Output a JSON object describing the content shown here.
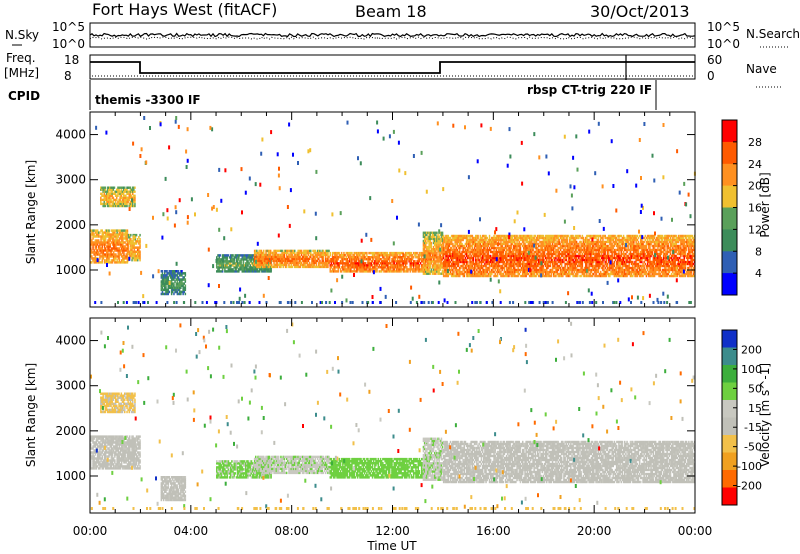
{
  "header": {
    "title": "Fort Hays West (fitACF)",
    "beam": "Beam 18",
    "date": "30/Oct/2013"
  },
  "top_panels": {
    "nsky_label": "N.Sky",
    "nsky_tick_top": "10^5",
    "nsky_tick_bottom": "10^0",
    "nsearch_label": "N.Search",
    "nsearch_tick_top": "10^5",
    "nsearch_tick_bottom": "10^0",
    "freq_label": "Freq.",
    "freq_unit": "[MHz]",
    "freq_ticks": [
      "18",
      "8"
    ],
    "nave_label": "Nave",
    "nave_ticks": [
      "60",
      "0"
    ],
    "cpid_label": "CPID",
    "cpid_left": "themis -3300 IF",
    "cpid_right": "rbsp CT-trig 220 IF"
  },
  "colors": {
    "power_scale": [
      "#0000ff",
      "#2f5fb4",
      "#3c8c5a",
      "#5aa05a",
      "#f0c030",
      "#ff9020",
      "#ff5a00",
      "#ff0000"
    ],
    "velocity_scale": [
      "#ff0000",
      "#ff6a00",
      "#f0a020",
      "#f2c04a",
      "#c0c0b8",
      "#c8c8c0",
      "#6ed040",
      "#3cae3c",
      "#3c8c8c",
      "#1030c8"
    ],
    "ground_scatter": "#c0c0b8"
  },
  "chart_data": [
    {
      "type": "heatmap",
      "name": "power",
      "ylabel": "Slant Range [km]",
      "xlabel": "",
      "x_ticks": [
        "00:00",
        "04:00",
        "08:00",
        "12:00",
        "16:00",
        "20:00",
        "00:00"
      ],
      "x_range_hours": [
        0,
        24
      ],
      "y_ticks": [
        "1000",
        "2000",
        "3000",
        "4000"
      ],
      "ylim": [
        180,
        4500
      ],
      "colorbar": {
        "label": "Power [dB]",
        "ticks": [
          "4",
          "8",
          "12",
          "16",
          "20",
          "24",
          "28"
        ],
        "range": [
          0,
          32
        ]
      },
      "scatter_bands": [
        {
          "t0": 0.0,
          "t1": 1.5,
          "lo": 1150,
          "hi": 1900,
          "value": 22
        },
        {
          "t0": 1.5,
          "t1": 2.0,
          "lo": 1200,
          "hi": 1800,
          "value": 20
        },
        {
          "t0": 0.4,
          "t1": 1.8,
          "lo": 2400,
          "hi": 2850,
          "value": 18
        },
        {
          "t0": 2.8,
          "t1": 3.8,
          "lo": 450,
          "hi": 1000,
          "value": 10
        },
        {
          "t0": 5.0,
          "t1": 7.2,
          "lo": 950,
          "hi": 1350,
          "value": 12
        },
        {
          "t0": 6.5,
          "t1": 9.5,
          "lo": 1050,
          "hi": 1450,
          "value": 22
        },
        {
          "t0": 9.5,
          "t1": 13.4,
          "lo": 950,
          "hi": 1400,
          "value": 24
        },
        {
          "t0": 13.2,
          "t1": 14.0,
          "lo": 900,
          "hi": 1850,
          "value": 20
        },
        {
          "t0": 14.0,
          "t1": 24.0,
          "lo": 850,
          "hi": 1780,
          "value": 24
        }
      ]
    },
    {
      "type": "heatmap",
      "name": "velocity",
      "ylabel": "Slant Range [km]",
      "xlabel": "Time UT",
      "x_ticks": [
        "00:00",
        "04:00",
        "08:00",
        "12:00",
        "16:00",
        "20:00",
        "00:00"
      ],
      "x_range_hours": [
        0,
        24
      ],
      "y_ticks": [
        "1000",
        "2000",
        "3000",
        "4000"
      ],
      "ylim": [
        180,
        4500
      ],
      "colorbar": {
        "label": "Velocity [m s^-1]",
        "ticks": [
          "200",
          "100",
          "50",
          "15",
          "-15",
          "-50",
          "-100",
          "-200"
        ],
        "range": [
          -250,
          250
        ]
      },
      "scatter_bands": [
        {
          "t0": 0.0,
          "t1": 2.0,
          "lo": 1150,
          "hi": 1900,
          "value": 0
        },
        {
          "t0": 0.4,
          "t1": 1.8,
          "lo": 2400,
          "hi": 2850,
          "value": -60
        },
        {
          "t0": 2.8,
          "t1": 3.8,
          "lo": 450,
          "hi": 1000,
          "value": 0
        },
        {
          "t0": 5.0,
          "t1": 7.2,
          "lo": 950,
          "hi": 1350,
          "value": 60
        },
        {
          "t0": 6.5,
          "t1": 9.5,
          "lo": 1050,
          "hi": 1450,
          "value": 40
        },
        {
          "t0": 9.5,
          "t1": 13.4,
          "lo": 950,
          "hi": 1400,
          "value": 70
        },
        {
          "t0": 13.2,
          "t1": 14.0,
          "lo": 900,
          "hi": 1850,
          "value": 40
        },
        {
          "t0": 14.0,
          "t1": 24.0,
          "lo": 850,
          "hi": 1780,
          "value": 0
        }
      ]
    }
  ]
}
